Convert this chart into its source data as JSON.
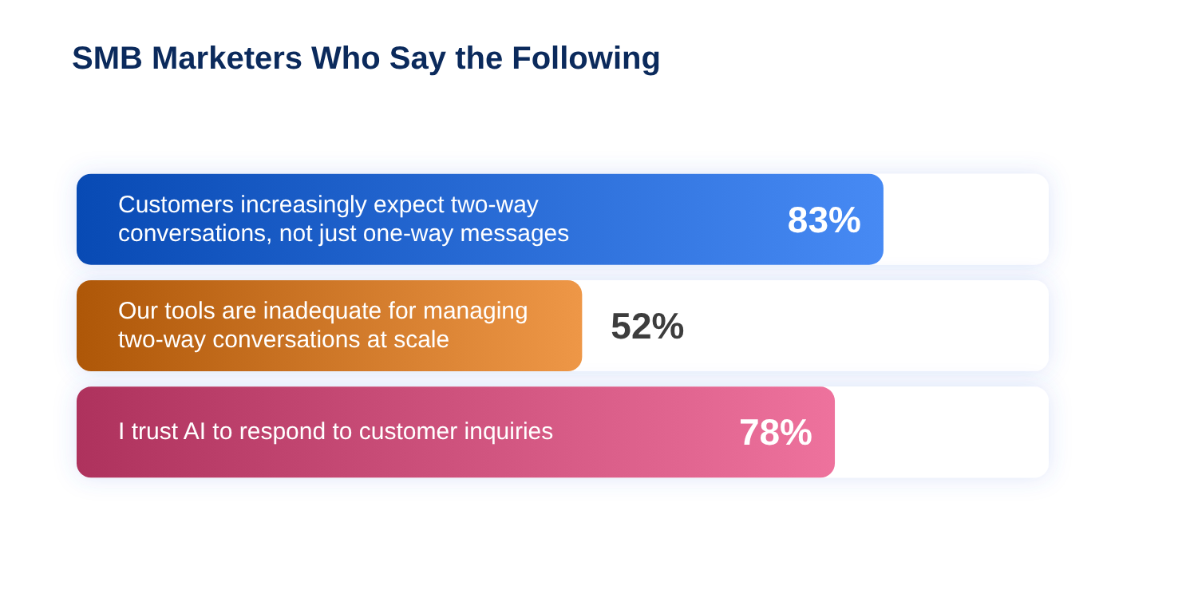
{
  "chart_data": {
    "type": "bar",
    "orientation": "horizontal",
    "title": "SMB Marketers Who Say the Following",
    "categories": [
      "Customers increasingly expect two-way conversations, not just one-way messages",
      "Our tools are inadequate for managing two-way conversations at scale",
      "I trust AI to respond to customer inquiries"
    ],
    "values": [
      83,
      52,
      78
    ],
    "value_labels": [
      "83%",
      "52%",
      "78%"
    ],
    "colors": [
      "#0a63f0",
      "#e8740a",
      "#e8437c"
    ]
  }
}
